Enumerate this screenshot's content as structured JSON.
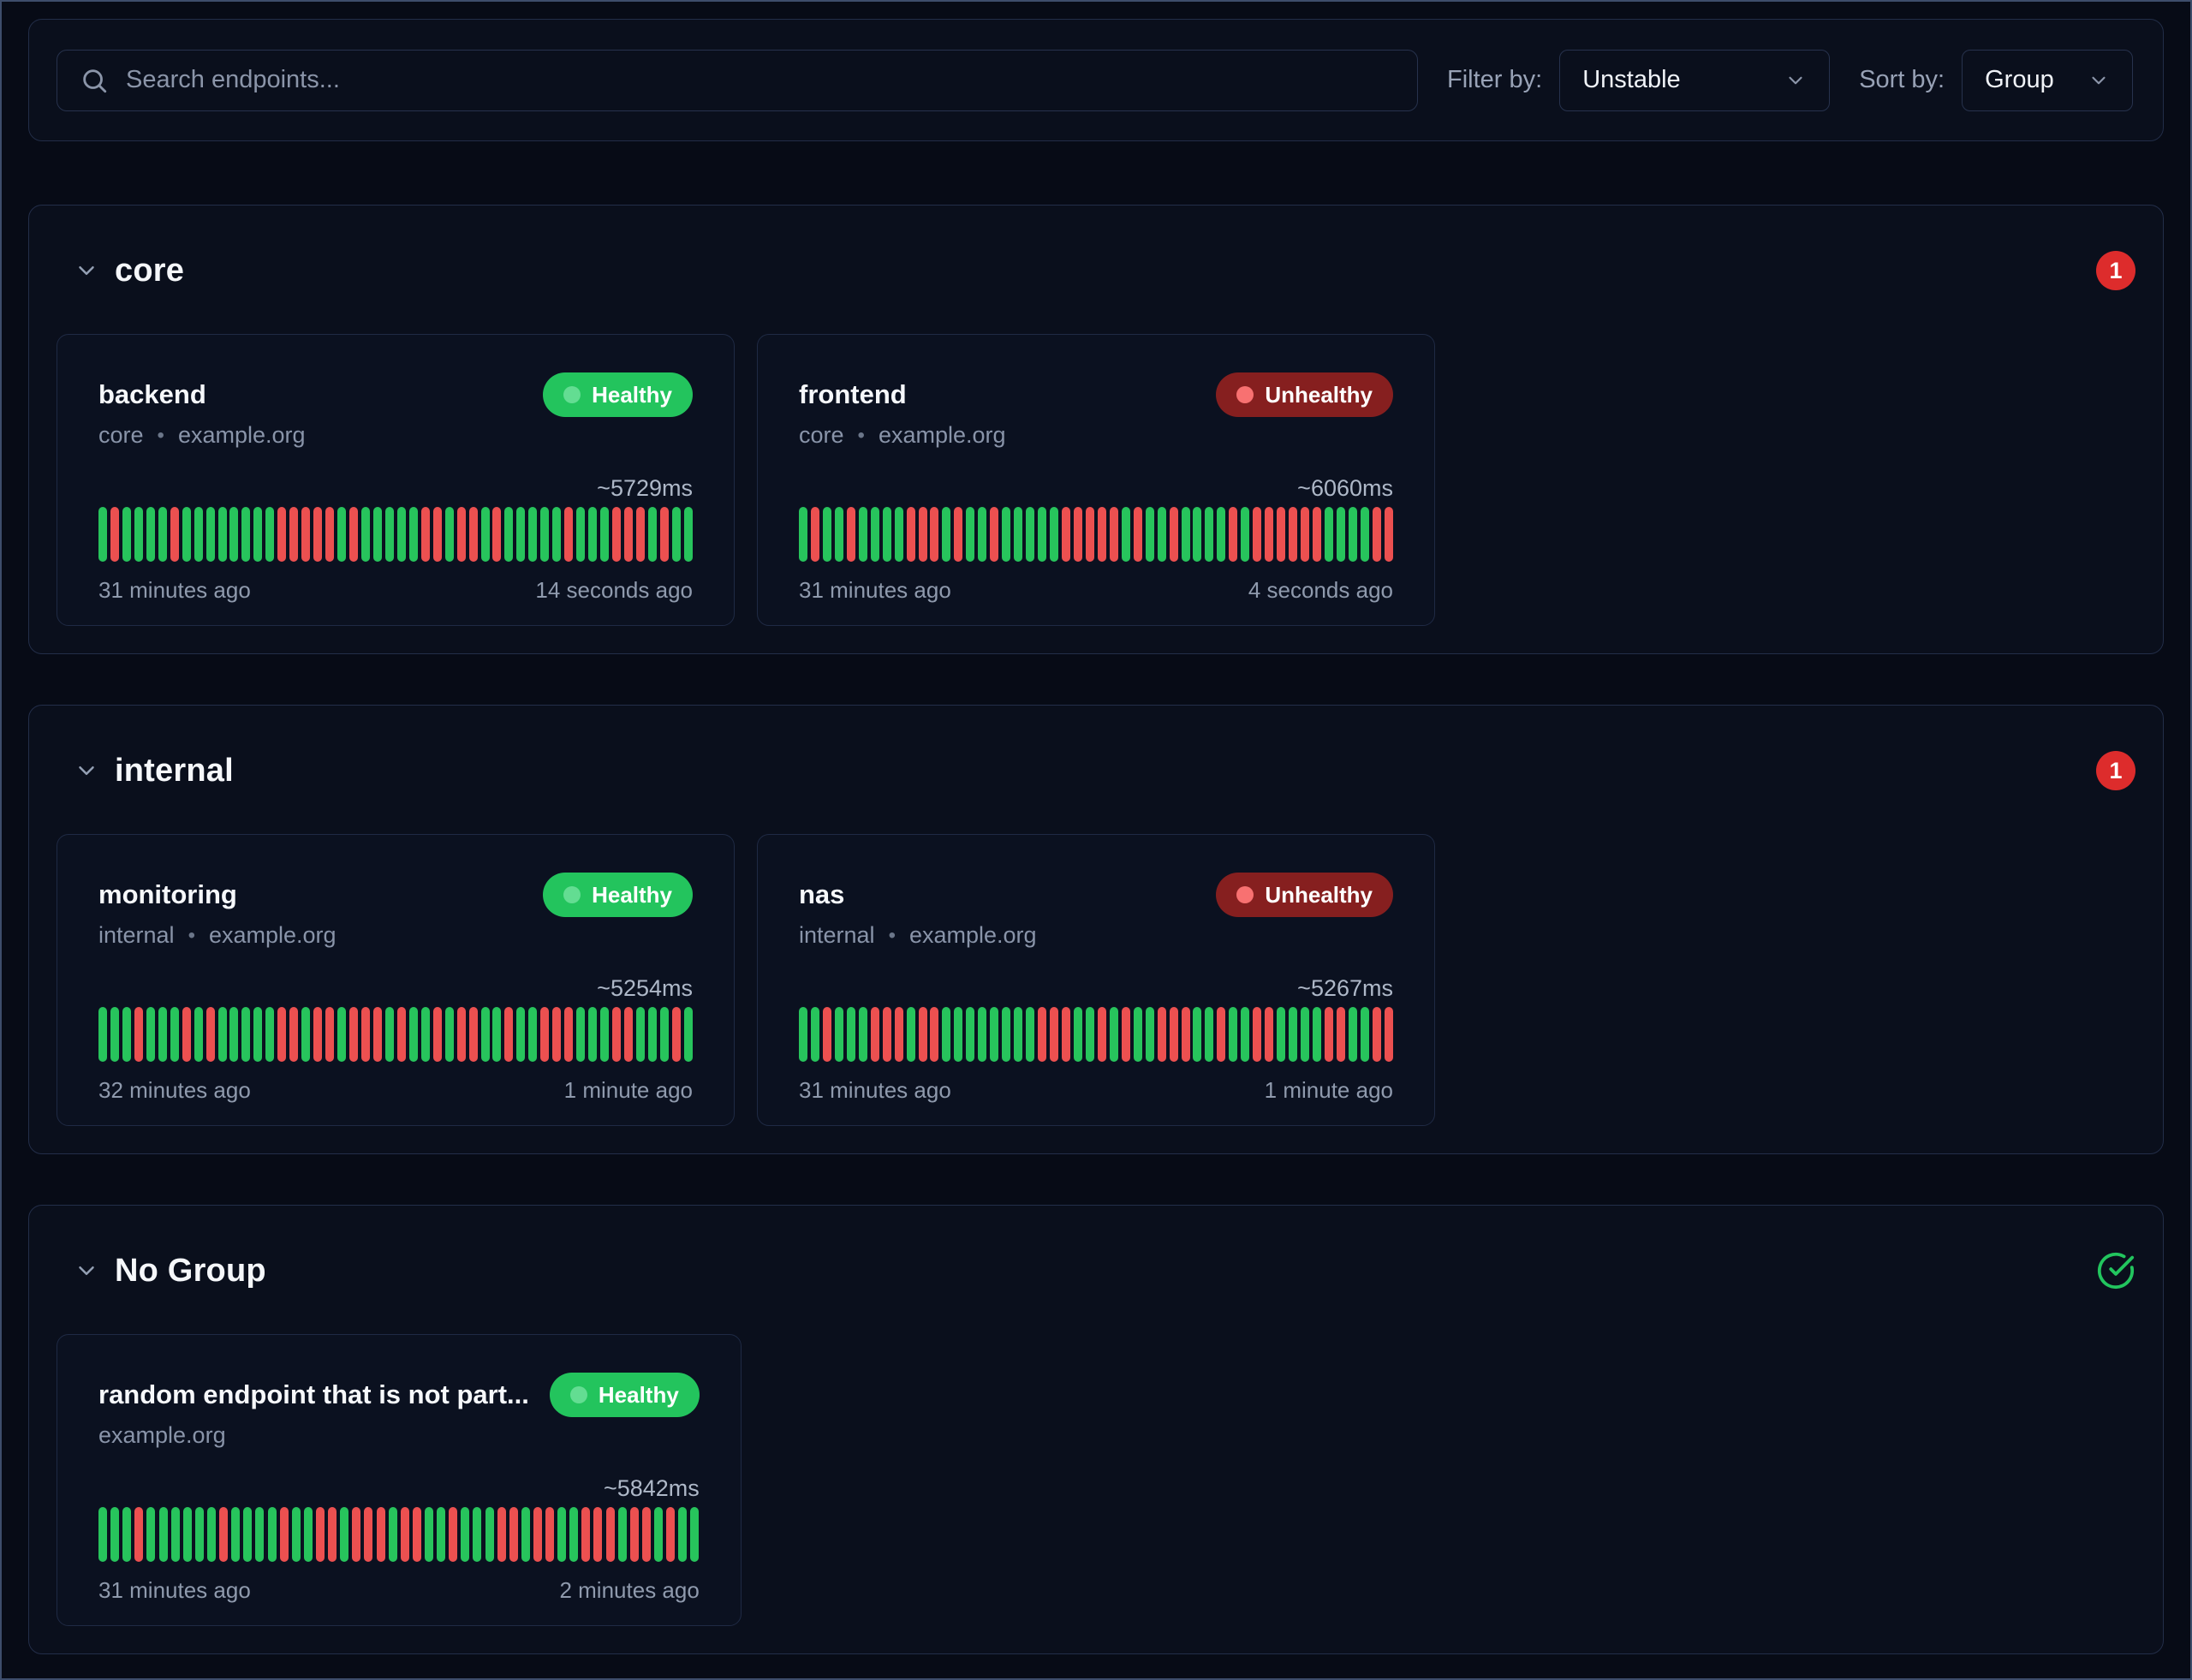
{
  "toolbar": {
    "search": {
      "placeholder": "Search endpoints...",
      "icon": "search-icon"
    },
    "filter": {
      "label": "Filter by:",
      "value": "Unstable"
    },
    "sort": {
      "label": "Sort by:",
      "value": "Group"
    }
  },
  "ui": {
    "separator": "•",
    "colors": {
      "healthy_badge": "#23c45d",
      "unhealthy_badge": "#861f1f",
      "bar_green": "#27c45c",
      "bar_red": "#ec5050",
      "count_badge_red": "#dd2c2c",
      "check_icon_green": "#22c55e",
      "background": "#070b16"
    }
  },
  "groups": [
    {
      "name": "core",
      "unhealthy_count": "1",
      "endpoints": [
        {
          "name": "backend",
          "status": "Healthy",
          "group": "core",
          "host": "example.org",
          "response_time": "~5729ms",
          "history": "GRGGGGRGGGGGGGGRRRRRGRGGGGGRRGRRGRGGGGGRGGGRRRGRGG",
          "history_start": "31 minutes ago",
          "history_end": "14 seconds ago"
        },
        {
          "name": "frontend",
          "status": "Unhealthy",
          "group": "core",
          "host": "example.org",
          "response_time": "~6060ms",
          "history": "GRGGRGGGGRRRGRGGRGGGGGRRRRRGRGGRGGGGRGRRRRRRGGGGRR",
          "history_start": "31 minutes ago",
          "history_end": "4 seconds ago"
        }
      ]
    },
    {
      "name": "internal",
      "unhealthy_count": "1",
      "endpoints": [
        {
          "name": "monitoring",
          "status": "Healthy",
          "group": "internal",
          "host": "example.org",
          "response_time": "~5254ms",
          "history": "GGGRGGGRGRGGGGGRRGRRGRRRGRGGRGRRGGRGGRRRGGGRRGGGRG",
          "history_start": "32 minutes ago",
          "history_end": "1 minute ago"
        },
        {
          "name": "nas",
          "status": "Unhealthy",
          "group": "internal",
          "host": "example.org",
          "response_time": "~5267ms",
          "history": "GGRGGGRRRGRRGGGGGGGGRRRGGRGRGGRRRGGRGGRRGGGGRRGGRR",
          "history_start": "31 minutes ago",
          "history_end": "1 minute ago"
        }
      ]
    },
    {
      "name": "No Group",
      "all_healthy": true,
      "endpoints": [
        {
          "name": "random endpoint that is not part...",
          "status": "Healthy",
          "group": "",
          "host": "example.org",
          "response_time": "~5842ms",
          "history": "GGGRGGGGGGRGGGGRGGRRGRRRGRRGGRGGGRRGRRGGRRRGRRGRGG",
          "history_start": "31 minutes ago",
          "history_end": "2 minutes ago"
        }
      ]
    }
  ]
}
